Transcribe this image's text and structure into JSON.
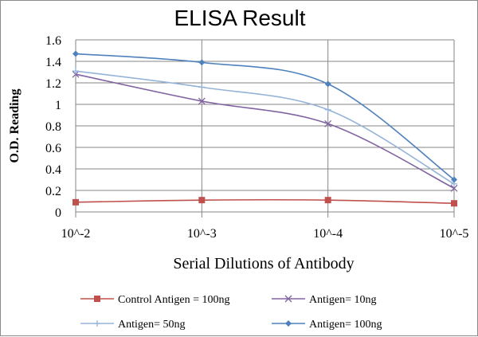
{
  "chart_data": {
    "type": "line",
    "title": "ELISA Result",
    "xlabel": "Serial Dilutions  of Antibody",
    "ylabel": "O.D. Reading",
    "categories": [
      "10^-2",
      "10^-3",
      "10^-4",
      "10^-5"
    ],
    "ylim": [
      0,
      1.6
    ],
    "yticks": [
      "0",
      "0.2",
      "0.4",
      "0.6",
      "0.8",
      "1",
      "1.2",
      "1.4",
      "1.6"
    ],
    "grid": true,
    "legend_position": "bottom",
    "series": [
      {
        "name": "Control Antigen = 100ng",
        "values": [
          0.09,
          0.11,
          0.11,
          0.08
        ],
        "color": "#c0504d",
        "marker": "square"
      },
      {
        "name": "Antigen= 10ng",
        "values": [
          1.28,
          1.03,
          0.82,
          0.22
        ],
        "color": "#8064a2",
        "marker": "x"
      },
      {
        "name": "Antigen= 50ng",
        "values": [
          1.31,
          1.16,
          0.95,
          0.26
        ],
        "color": "#95b3d7",
        "marker": "plus"
      },
      {
        "name": "Antigen= 100ng",
        "values": [
          1.47,
          1.39,
          1.19,
          0.3
        ],
        "color": "#4f81bd",
        "marker": "diamond"
      }
    ]
  }
}
